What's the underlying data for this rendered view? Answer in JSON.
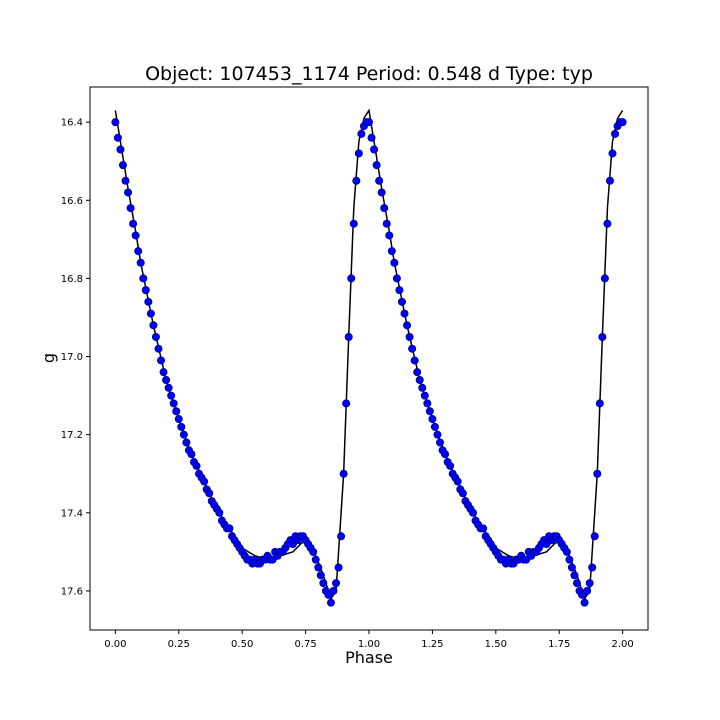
{
  "chart_data": {
    "type": "scatter",
    "title": "Object: 107453_1174    Period: 0.548 d    Type: typ",
    "xlabel": "Phase",
    "ylabel": "g",
    "xlim": [
      -0.1,
      2.1
    ],
    "ylim": [
      17.7,
      16.31
    ],
    "y_inverted": true,
    "grid": false,
    "x_ticks": [
      0.0,
      0.25,
      0.5,
      0.75,
      1.0,
      1.25,
      1.5,
      1.75,
      2.0
    ],
    "x_tick_labels": [
      "0.00",
      "0.25",
      "0.50",
      "0.75",
      "1.00",
      "1.25",
      "1.50",
      "1.75",
      "2.00"
    ],
    "y_ticks": [
      16.4,
      16.6,
      16.8,
      17.0,
      17.2,
      17.4,
      17.6
    ],
    "y_tick_labels": [
      "16.4",
      "16.6",
      "16.8",
      "17.0",
      "17.2",
      "17.4",
      "17.6"
    ],
    "series": [
      {
        "kind": "line",
        "color": "#000000",
        "x": [
          0.0,
          0.02,
          0.05,
          0.08,
          0.1,
          0.15,
          0.2,
          0.25,
          0.3,
          0.35,
          0.4,
          0.45,
          0.5,
          0.55,
          0.6,
          0.65,
          0.7,
          0.73,
          0.75,
          0.77,
          0.79,
          0.82,
          0.85,
          0.87,
          0.9,
          0.92,
          0.94,
          0.96,
          0.98,
          1.0,
          1.02,
          1.05,
          1.08,
          1.1,
          1.15,
          1.2,
          1.25,
          1.3,
          1.35,
          1.4,
          1.45,
          1.5,
          1.55,
          1.6,
          1.65,
          1.7,
          1.73,
          1.75,
          1.77,
          1.79,
          1.82,
          1.85,
          1.87,
          1.9,
          1.92,
          1.94,
          1.96,
          1.98,
          2.0
        ],
        "y": [
          16.37,
          16.45,
          16.57,
          16.68,
          16.76,
          16.92,
          17.06,
          17.16,
          17.25,
          17.32,
          17.39,
          17.44,
          17.49,
          17.51,
          17.52,
          17.51,
          17.5,
          17.48,
          17.47,
          17.48,
          17.51,
          17.56,
          17.62,
          17.6,
          17.3,
          16.95,
          16.62,
          16.45,
          16.39,
          16.37,
          16.45,
          16.57,
          16.68,
          16.76,
          16.92,
          17.06,
          17.16,
          17.25,
          17.32,
          17.39,
          17.44,
          17.49,
          17.51,
          17.52,
          17.51,
          17.5,
          17.48,
          17.47,
          17.48,
          17.51,
          17.56,
          17.62,
          17.6,
          17.3,
          16.95,
          16.62,
          16.45,
          16.39,
          16.37
        ]
      },
      {
        "kind": "scatter",
        "color": "#0000ff",
        "edge_color": "#000080",
        "x": [
          0.0,
          0.01,
          0.02,
          0.03,
          0.04,
          0.05,
          0.06,
          0.07,
          0.08,
          0.09,
          0.1,
          0.11,
          0.12,
          0.13,
          0.14,
          0.15,
          0.16,
          0.17,
          0.18,
          0.19,
          0.2,
          0.21,
          0.22,
          0.23,
          0.24,
          0.25,
          0.26,
          0.27,
          0.28,
          0.29,
          0.3,
          0.31,
          0.32,
          0.33,
          0.34,
          0.35,
          0.36,
          0.37,
          0.38,
          0.39,
          0.4,
          0.41,
          0.42,
          0.43,
          0.44,
          0.45,
          0.46,
          0.47,
          0.48,
          0.49,
          0.5,
          0.51,
          0.52,
          0.53,
          0.54,
          0.55,
          0.56,
          0.57,
          0.58,
          0.59,
          0.6,
          0.61,
          0.62,
          0.63,
          0.64,
          0.65,
          0.66,
          0.67,
          0.68,
          0.69,
          0.7,
          0.71,
          0.72,
          0.73,
          0.74,
          0.75,
          0.76,
          0.77,
          0.78,
          0.79,
          0.8,
          0.81,
          0.82,
          0.83,
          0.84,
          0.85,
          0.86,
          0.87,
          0.88,
          0.89,
          0.9,
          0.91,
          0.92,
          0.93,
          0.94,
          0.95,
          0.96,
          0.97,
          0.98,
          0.99,
          1.0,
          1.01,
          1.02,
          1.03,
          1.04,
          1.05,
          1.06,
          1.07,
          1.08,
          1.09,
          1.1,
          1.11,
          1.12,
          1.13,
          1.14,
          1.15,
          1.16,
          1.17,
          1.18,
          1.19,
          1.2,
          1.21,
          1.22,
          1.23,
          1.24,
          1.25,
          1.26,
          1.27,
          1.28,
          1.29,
          1.3,
          1.31,
          1.32,
          1.33,
          1.34,
          1.35,
          1.36,
          1.37,
          1.38,
          1.39,
          1.4,
          1.41,
          1.42,
          1.43,
          1.44,
          1.45,
          1.46,
          1.47,
          1.48,
          1.49,
          1.5,
          1.51,
          1.52,
          1.53,
          1.54,
          1.55,
          1.56,
          1.57,
          1.58,
          1.59,
          1.6,
          1.61,
          1.62,
          1.63,
          1.64,
          1.65,
          1.66,
          1.67,
          1.68,
          1.69,
          1.7,
          1.71,
          1.72,
          1.73,
          1.74,
          1.75,
          1.76,
          1.77,
          1.78,
          1.79,
          1.8,
          1.81,
          1.82,
          1.83,
          1.84,
          1.85,
          1.86,
          1.87,
          1.88,
          1.89,
          1.9,
          1.91,
          1.92,
          1.93,
          1.94,
          1.95,
          1.96,
          1.97,
          1.98,
          1.99,
          2.0
        ],
        "y": [
          16.4,
          16.44,
          16.47,
          16.51,
          16.55,
          16.58,
          16.62,
          16.66,
          16.69,
          16.73,
          16.76,
          16.8,
          16.83,
          16.86,
          16.89,
          16.92,
          16.95,
          16.98,
          17.01,
          17.04,
          17.06,
          17.08,
          17.1,
          17.12,
          17.14,
          17.16,
          17.18,
          17.2,
          17.22,
          17.24,
          17.25,
          17.27,
          17.28,
          17.3,
          17.31,
          17.32,
          17.34,
          17.35,
          17.37,
          17.38,
          17.39,
          17.4,
          17.42,
          17.43,
          17.44,
          17.44,
          17.46,
          17.47,
          17.48,
          17.49,
          17.5,
          17.51,
          17.52,
          17.52,
          17.53,
          17.52,
          17.53,
          17.53,
          17.52,
          17.52,
          17.51,
          17.52,
          17.52,
          17.5,
          17.51,
          17.5,
          17.5,
          17.49,
          17.48,
          17.47,
          17.48,
          17.46,
          17.47,
          17.46,
          17.46,
          17.47,
          17.48,
          17.49,
          17.5,
          17.52,
          17.54,
          17.56,
          17.58,
          17.6,
          17.61,
          17.63,
          17.6,
          17.58,
          17.54,
          17.46,
          17.3,
          17.12,
          16.95,
          16.8,
          16.66,
          16.55,
          16.48,
          16.43,
          16.41,
          16.4,
          16.4,
          16.44,
          16.47,
          16.51,
          16.55,
          16.58,
          16.62,
          16.66,
          16.69,
          16.73,
          16.76,
          16.8,
          16.83,
          16.86,
          16.89,
          16.92,
          16.95,
          16.98,
          17.01,
          17.04,
          17.06,
          17.08,
          17.1,
          17.12,
          17.14,
          17.16,
          17.18,
          17.2,
          17.22,
          17.24,
          17.25,
          17.27,
          17.28,
          17.3,
          17.31,
          17.32,
          17.34,
          17.35,
          17.37,
          17.38,
          17.39,
          17.4,
          17.42,
          17.43,
          17.44,
          17.44,
          17.46,
          17.47,
          17.48,
          17.49,
          17.5,
          17.51,
          17.52,
          17.52,
          17.53,
          17.52,
          17.53,
          17.53,
          17.52,
          17.52,
          17.51,
          17.52,
          17.52,
          17.5,
          17.51,
          17.5,
          17.5,
          17.49,
          17.48,
          17.47,
          17.48,
          17.46,
          17.47,
          17.46,
          17.46,
          17.47,
          17.48,
          17.49,
          17.5,
          17.52,
          17.54,
          17.56,
          17.58,
          17.6,
          17.61,
          17.63,
          17.6,
          17.58,
          17.54,
          17.46,
          17.3,
          17.12,
          16.95,
          16.8,
          16.66,
          16.55,
          16.48,
          16.43,
          16.41,
          16.4,
          16.4
        ]
      }
    ]
  }
}
